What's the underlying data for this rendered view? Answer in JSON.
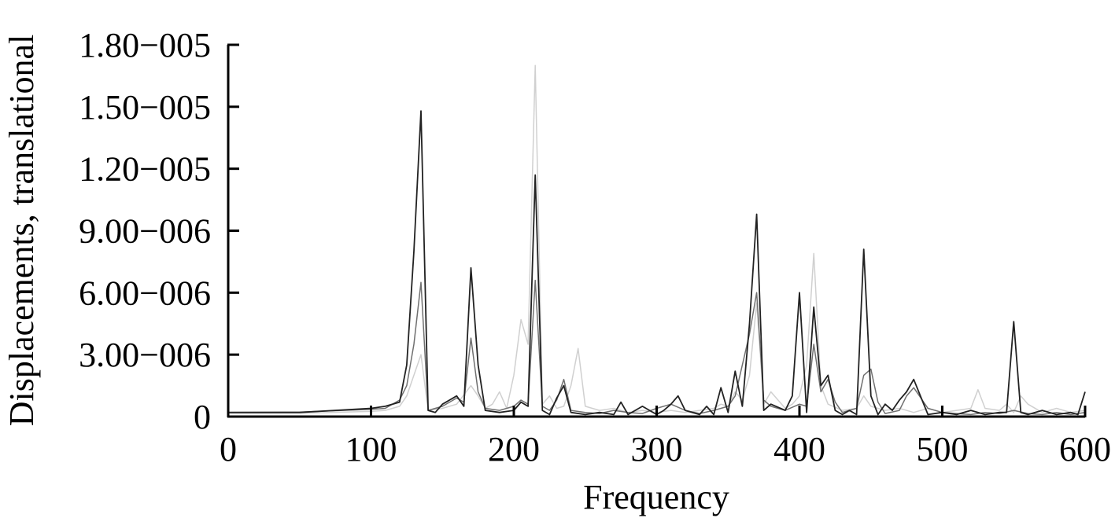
{
  "chart_data": {
    "type": "line",
    "title": "",
    "xlabel": "Frequency",
    "ylabel": "Displacements, translational",
    "xlim": [
      0,
      600
    ],
    "ylim": [
      0,
      1.8e-05
    ],
    "xticks": [
      0,
      100,
      200,
      300,
      400,
      500,
      600
    ],
    "xtick_labels": [
      "0",
      "100",
      "200",
      "300",
      "400",
      "500",
      "600"
    ],
    "yticks": [
      0,
      3e-06,
      6e-06,
      9e-06,
      1.2e-05,
      1.5e-05,
      1.8e-05
    ],
    "ytick_labels": [
      "0",
      "3.00−006",
      "6.00−006",
      "9.00−006",
      "1.20−005",
      "1.50−005",
      "1.80−005"
    ],
    "grid": false,
    "legend": "none",
    "series": [
      {
        "color": "#d0d0d0",
        "x": [
          0,
          50,
          100,
          110,
          120,
          125,
          130,
          135,
          140,
          150,
          160,
          170,
          175,
          180,
          185,
          190,
          195,
          200,
          205,
          210,
          215,
          220,
          225,
          230,
          235,
          240,
          245,
          250,
          260,
          270,
          280,
          290,
          300,
          310,
          320,
          330,
          340,
          345,
          350,
          355,
          360,
          365,
          370,
          375,
          380,
          390,
          395,
          400,
          405,
          410,
          415,
          420,
          430,
          440,
          445,
          450,
          460,
          470,
          480,
          490,
          500,
          510,
          520,
          525,
          530,
          540,
          545,
          550,
          555,
          560,
          570,
          580,
          590,
          600
        ],
        "y": [
          1.5e-07,
          1.6e-07,
          2.5e-07,
          3e-07,
          5e-07,
          1e-06,
          2e-06,
          3e-06,
          3e-07,
          4e-07,
          6e-07,
          1.5e-06,
          1e-06,
          4e-07,
          6e-07,
          1.2e-06,
          4e-07,
          2e-06,
          4.7e-06,
          3.5e-06,
          1.7e-05,
          6e-07,
          1e-06,
          4e-07,
          5e-07,
          1.5e-06,
          3.3e-06,
          5e-07,
          3e-07,
          4e-07,
          2e-07,
          3e-07,
          2e-07,
          3e-07,
          2e-07,
          3e-07,
          4e-07,
          6e-07,
          5e-07,
          1.2e-06,
          8e-07,
          2e-06,
          5.5e-06,
          6e-07,
          1.2e-06,
          4e-07,
          6e-07,
          1e-06,
          2.5e-06,
          7.9e-06,
          1.5e-06,
          6e-07,
          3e-07,
          4e-07,
          1e-06,
          5e-07,
          3e-07,
          4e-07,
          2e-07,
          4e-07,
          2e-07,
          3e-07,
          4e-07,
          1.3e-06,
          4e-07,
          3e-07,
          6e-07,
          2e-07,
          1e-06,
          6e-07,
          2e-07,
          4e-07,
          2e-07,
          3e-07
        ]
      },
      {
        "color": "#707070",
        "x": [
          0,
          50,
          100,
          110,
          120,
          125,
          130,
          135,
          140,
          150,
          160,
          165,
          170,
          175,
          180,
          190,
          200,
          205,
          210,
          215,
          220,
          225,
          230,
          235,
          240,
          250,
          260,
          270,
          280,
          290,
          300,
          310,
          320,
          330,
          340,
          350,
          355,
          360,
          365,
          370,
          375,
          380,
          390,
          400,
          405,
          410,
          415,
          420,
          425,
          430,
          440,
          445,
          450,
          455,
          460,
          470,
          475,
          480,
          490,
          500,
          510,
          520,
          530,
          540,
          550,
          560,
          570,
          580,
          590,
          600
        ],
        "y": [
          2e-07,
          2.2e-07,
          3.5e-07,
          4e-07,
          8e-07,
          1.5e-06,
          3.5e-06,
          6.5e-06,
          3e-07,
          5e-07,
          9e-07,
          7e-07,
          3.8e-06,
          1.2e-06,
          4e-07,
          3e-07,
          5e-07,
          8e-07,
          6e-07,
          6.6e-06,
          5e-07,
          3e-07,
          8e-07,
          1.8e-06,
          3e-07,
          2e-07,
          1.5e-07,
          3e-07,
          2e-07,
          1.5e-07,
          4e-07,
          6e-07,
          3e-07,
          1.5e-07,
          3e-07,
          5e-07,
          1e-06,
          2.5e-06,
          4e-06,
          6e-06,
          8e-07,
          5e-07,
          3e-07,
          6e-07,
          5e-07,
          3.5e-06,
          1.2e-06,
          1.8e-06,
          7e-07,
          2e-07,
          4e-07,
          2e-06,
          2.3e-06,
          7e-07,
          1.5e-07,
          3e-07,
          1e-06,
          1.4e-06,
          4e-07,
          2e-07,
          1.5e-07,
          1e-07,
          2e-07,
          1.5e-07,
          3e-07,
          1.5e-07,
          1e-07,
          2e-07,
          1e-07,
          2e-07
        ]
      },
      {
        "color": "#222222",
        "x": [
          0,
          50,
          100,
          110,
          120,
          125,
          130,
          135,
          140,
          145,
          150,
          160,
          165,
          170,
          175,
          180,
          190,
          200,
          205,
          210,
          215,
          220,
          225,
          230,
          235,
          240,
          250,
          260,
          270,
          275,
          280,
          290,
          300,
          305,
          310,
          315,
          320,
          330,
          335,
          340,
          345,
          350,
          355,
          360,
          365,
          370,
          375,
          380,
          390,
          395,
          400,
          405,
          410,
          415,
          420,
          425,
          430,
          435,
          440,
          445,
          450,
          455,
          460,
          465,
          470,
          475,
          480,
          490,
          500,
          510,
          520,
          530,
          540,
          545,
          550,
          555,
          560,
          570,
          580,
          590,
          595,
          600
        ],
        "y": [
          2e-07,
          2e-07,
          4e-07,
          5e-07,
          7e-07,
          2.5e-06,
          8e-06,
          1.48e-05,
          3e-07,
          2e-07,
          6e-07,
          1e-06,
          5e-07,
          7.2e-06,
          2.5e-06,
          3e-07,
          2e-07,
          3e-07,
          7e-07,
          5e-07,
          1.17e-05,
          3e-07,
          1e-07,
          9e-07,
          1.5e-06,
          2e-07,
          1e-07,
          2e-07,
          1e-07,
          7e-07,
          1e-07,
          5e-07,
          1e-07,
          3e-07,
          6e-07,
          1e-06,
          3e-07,
          1e-07,
          5e-07,
          1e-07,
          1.4e-06,
          2e-07,
          2.2e-06,
          5e-07,
          4.5e-06,
          9.8e-06,
          3e-07,
          6e-07,
          3e-07,
          1e-06,
          6e-06,
          2e-07,
          5.3e-06,
          1.5e-06,
          2e-06,
          3e-07,
          1e-07,
          3e-07,
          1e-07,
          8.1e-06,
          1e-06,
          1e-07,
          6e-07,
          3e-07,
          8e-07,
          1.2e-06,
          1.8e-06,
          1e-07,
          2e-07,
          1e-07,
          3e-07,
          1e-07,
          2e-07,
          2e-07,
          4.6e-06,
          2e-07,
          1e-07,
          3e-07,
          1e-07,
          2e-07,
          1e-07,
          1.2e-06
        ]
      }
    ]
  }
}
